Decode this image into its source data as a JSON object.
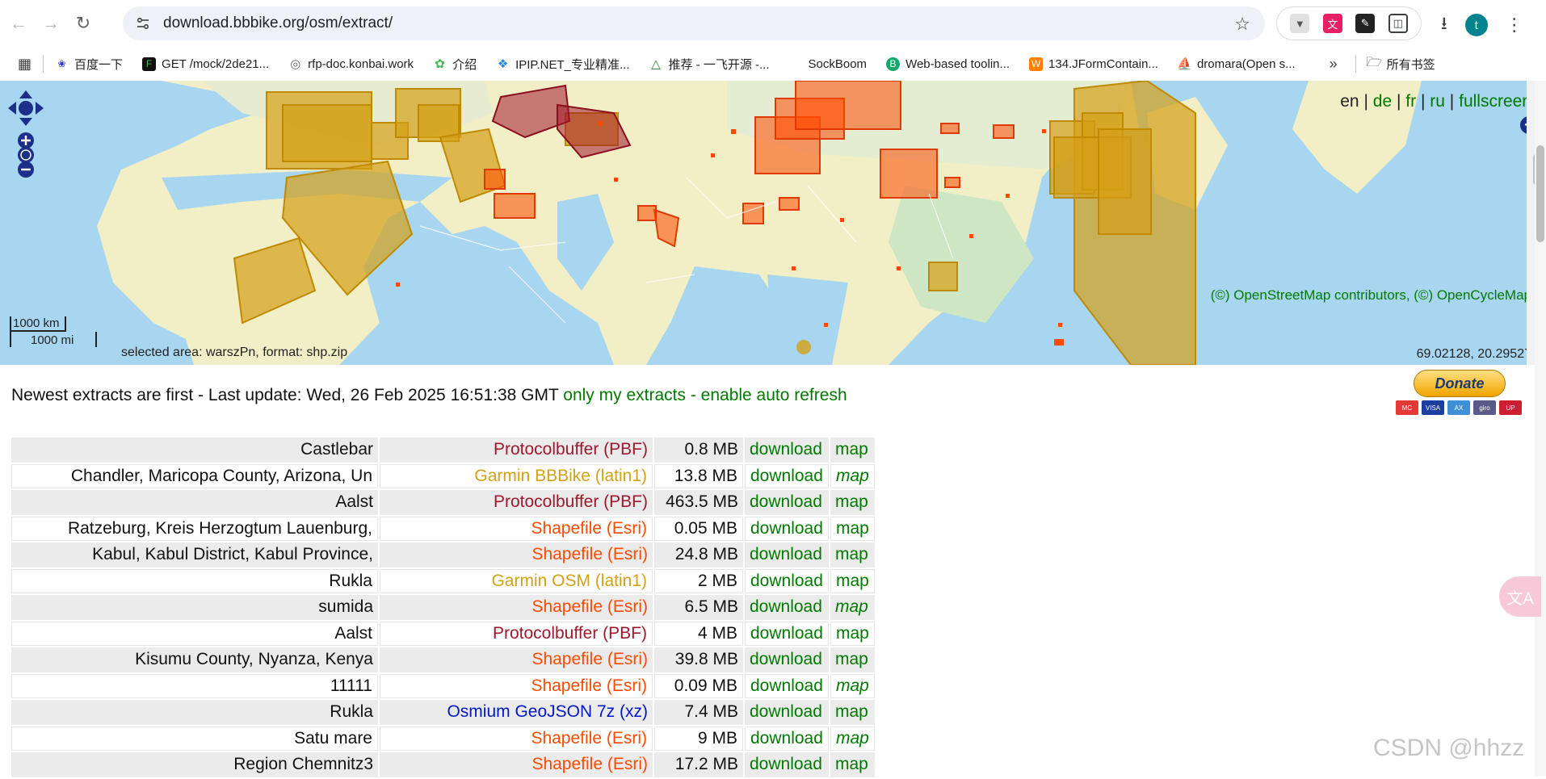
{
  "browser": {
    "url": "download.bbbike.org/osm/extract/",
    "avatar_letter": "t",
    "bookmarks": [
      {
        "label": "百度一下",
        "icon": "paw-icon",
        "color": "#2932e1"
      },
      {
        "label": "GET /mock/2de21...",
        "icon": "f-icon",
        "color": "#111111"
      },
      {
        "label": "rfp-doc.konbai.work",
        "icon": "globe-icon",
        "color": "#5f6368"
      },
      {
        "label": "介绍",
        "icon": "leaf-icon",
        "color": "#3fb950"
      },
      {
        "label": "IPIP.NET_专业精准...",
        "icon": "ipip-icon",
        "color": "#1e88e5"
      },
      {
        "label": "推荐 - 一飞开源 -...",
        "icon": "triangle-icon",
        "color": "#2e7d32"
      },
      {
        "label": "SockBoom",
        "icon": "",
        "color": ""
      },
      {
        "label": "Web-based toolin...",
        "icon": "b-icon",
        "color": "#13a86b"
      },
      {
        "label": "134.JFormContain...",
        "icon": "w-icon",
        "color": "#ff7f00"
      },
      {
        "label": "dromara(Open s...",
        "icon": "boat-icon",
        "color": "#a1887f"
      }
    ],
    "all_bookmarks_label": "所有书签"
  },
  "map": {
    "lang": {
      "en": "en",
      "de": "de",
      "fr": "fr",
      "ru": "ru",
      "fullscreen": "fullscreen",
      "sep": "|"
    },
    "attribution": "(©) OpenStreetMap contributors, (©) OpenCycleMap",
    "coords": "69.02128, 20.29527",
    "selected": "selected area: warszPn, format: shp.zip",
    "scale_km": "1000 km",
    "scale_mi": "1000 mi"
  },
  "status": {
    "prefix": "Newest extracts are first",
    "dash1": " - ",
    "last_update": "Last update: Wed, 26 Feb 2025 16:51:38 GMT",
    "only_mine": "only my extracts",
    "dash2": " - ",
    "auto_refresh": "enable auto refresh"
  },
  "donate": {
    "label": "Donate"
  },
  "colors": {
    "pbf": "#a0182c",
    "garmin": "#d4a017",
    "shapefile": "#ff4a00",
    "osmium": "#0018c8",
    "link": "#007a00"
  },
  "extracts": [
    {
      "name": "Castlebar",
      "format": "Protocolbuffer (PBF)",
      "fmt_color": "#a0182c",
      "size": "0.8 MB",
      "dl": "download",
      "map": "map",
      "map_italic": false
    },
    {
      "name": "Chandler, Maricopa County, Arizona, Un",
      "format": "Garmin BBBike (latin1)",
      "fmt_color": "#d4a017",
      "size": "13.8 MB",
      "dl": "download",
      "map": "map",
      "map_italic": true
    },
    {
      "name": "Aalst",
      "format": "Protocolbuffer (PBF)",
      "fmt_color": "#a0182c",
      "size": "463.5 MB",
      "dl": "download",
      "map": "map",
      "map_italic": false
    },
    {
      "name": "Ratzeburg, Kreis Herzogtum Lauenburg,",
      "format": "Shapefile (Esri)",
      "fmt_color": "#ff4a00",
      "size": "0.05 MB",
      "dl": "download",
      "map": "map",
      "map_italic": false
    },
    {
      "name": "Kabul, Kabul District, Kabul Province,",
      "format": "Shapefile (Esri)",
      "fmt_color": "#ff4a00",
      "size": "24.8 MB",
      "dl": "download",
      "map": "map",
      "map_italic": false
    },
    {
      "name": "Rukla",
      "format": "Garmin OSM (latin1)",
      "fmt_color": "#d4a017",
      "size": "2 MB",
      "dl": "download",
      "map": "map",
      "map_italic": false
    },
    {
      "name": "sumida",
      "format": "Shapefile (Esri)",
      "fmt_color": "#ff4a00",
      "size": "6.5 MB",
      "dl": "download",
      "map": "map",
      "map_italic": true
    },
    {
      "name": "Aalst",
      "format": "Protocolbuffer (PBF)",
      "fmt_color": "#a0182c",
      "size": "4 MB",
      "dl": "download",
      "map": "map",
      "map_italic": false
    },
    {
      "name": "Kisumu County, Nyanza, Kenya",
      "format": "Shapefile (Esri)",
      "fmt_color": "#ff4a00",
      "size": "39.8 MB",
      "dl": "download",
      "map": "map",
      "map_italic": false
    },
    {
      "name": "11111",
      "format": "Shapefile (Esri)",
      "fmt_color": "#ff4a00",
      "size": "0.09 MB",
      "dl": "download",
      "map": "map",
      "map_italic": true
    },
    {
      "name": "Rukla",
      "format": "Osmium GeoJSON 7z (xz)",
      "fmt_color": "#0018c8",
      "size": "7.4 MB",
      "dl": "download",
      "map": "map",
      "map_italic": false
    },
    {
      "name": "Satu mare",
      "format": "Shapefile (Esri)",
      "fmt_color": "#ff4a00",
      "size": "9 MB",
      "dl": "download",
      "map": "map",
      "map_italic": true
    },
    {
      "name": "Region Chemnitz3",
      "format": "Shapefile (Esri)",
      "fmt_color": "#ff4a00",
      "size": "17.2 MB",
      "dl": "download",
      "map": "map",
      "map_italic": false
    }
  ],
  "watermark": "CSDN @hhzz"
}
